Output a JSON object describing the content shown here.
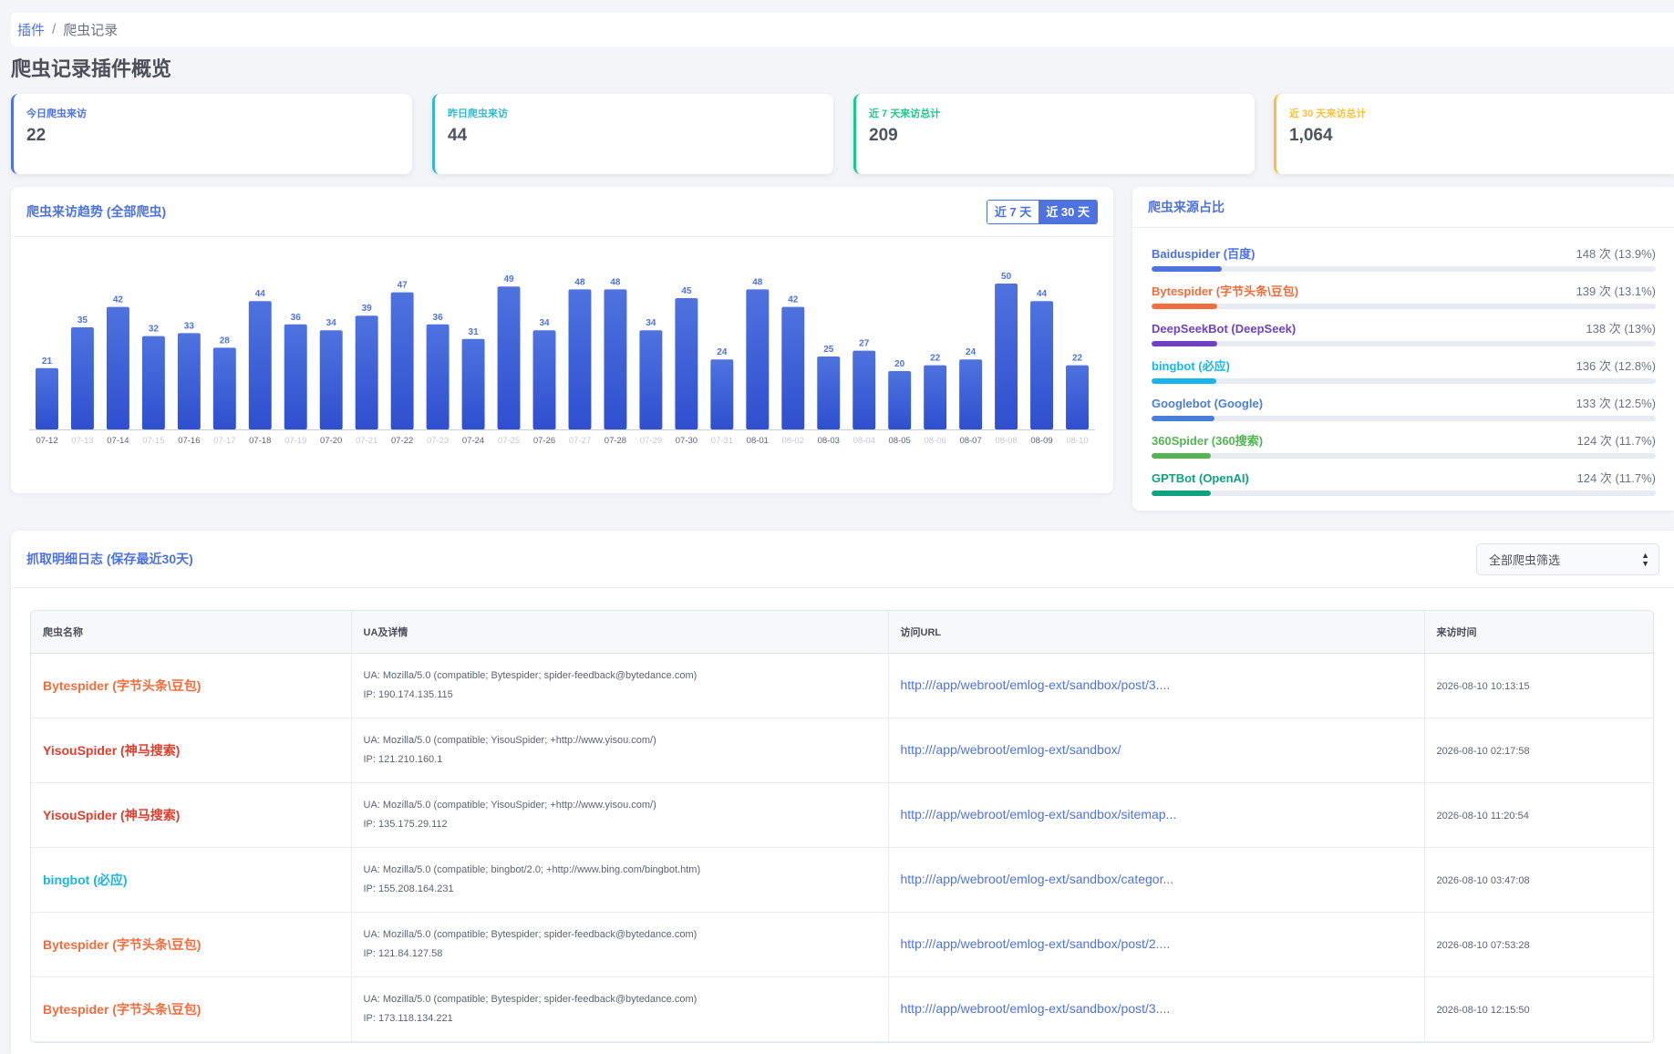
{
  "breadcrumb": {
    "parent": "插件",
    "separator": "/",
    "current": "爬虫记录"
  },
  "page_title": "爬虫记录插件概览",
  "stats": [
    {
      "label": "今日爬虫来访",
      "value": "22",
      "color": "#4e73df"
    },
    {
      "label": "昨日爬虫来访",
      "value": "44",
      "color": "#36b9cc"
    },
    {
      "label": "近 7 天来访总计",
      "value": "209",
      "color": "#1cc88a"
    },
    {
      "label": "近 30 天来访总计",
      "value": "1,064",
      "color": "#f6c23e"
    }
  ],
  "trend": {
    "title": "爬虫来访趋势 (全部爬虫)",
    "range_7": "近 7 天",
    "range_30": "近 30 天",
    "active_range": "近 30 天"
  },
  "chart_data": {
    "type": "bar",
    "categories": [
      "07-12",
      "07-13",
      "07-14",
      "07-15",
      "07-16",
      "07-17",
      "07-18",
      "07-19",
      "07-20",
      "07-21",
      "07-22",
      "07-23",
      "07-24",
      "07-25",
      "07-26",
      "07-27",
      "07-28",
      "07-29",
      "07-30",
      "07-31",
      "08-01",
      "08-02",
      "08-03",
      "08-04",
      "08-05",
      "08-06",
      "08-07",
      "08-08",
      "08-09",
      "08-10"
    ],
    "values": [
      21,
      35,
      42,
      32,
      33,
      28,
      44,
      36,
      34,
      39,
      47,
      36,
      31,
      49,
      34,
      48,
      48,
      34,
      45,
      24,
      48,
      42,
      25,
      27,
      20,
      22,
      24,
      50,
      44,
      22
    ],
    "title": "",
    "xlabel": "",
    "ylabel": "",
    "ylim": [
      0,
      50
    ],
    "grid": false,
    "bar_color": "#4e73df"
  },
  "sources": {
    "title": "爬虫来源占比",
    "items": [
      {
        "name": "Baiduspider (百度)",
        "count": "148 次 (13.9%)",
        "percent": 13.9,
        "color": "#4e73df"
      },
      {
        "name": "Bytespider (字节头条\\豆包)",
        "count": "139 次 (13.1%)",
        "percent": 13.1,
        "color": "#f26d3d"
      },
      {
        "name": "DeepSeekBot (DeepSeek)",
        "count": "138 次 (13%)",
        "percent": 13.0,
        "color": "#6f42c1"
      },
      {
        "name": "bingbot (必应)",
        "count": "136 次 (12.8%)",
        "percent": 12.8,
        "color": "#18b6e6"
      },
      {
        "name": "Googlebot (Google)",
        "count": "133 次 (12.5%)",
        "percent": 12.5,
        "color": "#4a7fd9"
      },
      {
        "name": "360Spider (360搜索)",
        "count": "124 次 (11.7%)",
        "percent": 11.7,
        "color": "#52b552"
      },
      {
        "name": "GPTBot (OpenAI)",
        "count": "124 次 (11.7%)",
        "percent": 11.7,
        "color": "#10a37f"
      }
    ]
  },
  "logs": {
    "title": "抓取明细日志 (保存最近30天)",
    "filter_value": "全部爬虫筛选",
    "columns": [
      "爬虫名称",
      "UA及详情",
      "访问URL",
      "来访时间"
    ],
    "rows": [
      {
        "bot": "Bytespider (字节头条\\豆包)",
        "color": "#f26d3d",
        "ua": "UA: Mozilla/5.0 (compatible; Bytespider; spider-feedback@bytedance.com)",
        "ip": "IP: 190.174.135.115",
        "url": "http:///app/webroot/emlog-ext/sandbox/post/3....",
        "time": "2026-08-10 10:13:15"
      },
      {
        "bot": "YisouSpider (神马搜索)",
        "color": "#e03e2d",
        "ua": "UA: Mozilla/5.0 (compatible; YisouSpider; +http://www.yisou.com/)",
        "ip": "IP: 121.210.160.1",
        "url": "http:///app/webroot/emlog-ext/sandbox/",
        "time": "2026-08-10 02:17:58"
      },
      {
        "bot": "YisouSpider (神马搜索)",
        "color": "#e03e2d",
        "ua": "UA: Mozilla/5.0 (compatible; YisouSpider; +http://www.yisou.com/)",
        "ip": "IP: 135.175.29.112",
        "url": "http:///app/webroot/emlog-ext/sandbox/sitemap...",
        "time": "2026-08-10 11:20:54"
      },
      {
        "bot": "bingbot (必应)",
        "color": "#18b6e6",
        "ua": "UA: Mozilla/5.0 (compatible; bingbot/2.0; +http://www.bing.com/bingbot.htm)",
        "ip": "IP: 155.208.164.231",
        "url": "http:///app/webroot/emlog-ext/sandbox/categor...",
        "time": "2026-08-10 03:47:08"
      },
      {
        "bot": "Bytespider (字节头条\\豆包)",
        "color": "#f26d3d",
        "ua": "UA: Mozilla/5.0 (compatible; Bytespider; spider-feedback@bytedance.com)",
        "ip": "IP: 121.84.127.58",
        "url": "http:///app/webroot/emlog-ext/sandbox/post/2....",
        "time": "2026-08-10 07:53:28"
      },
      {
        "bot": "Bytespider (字节头条\\豆包)",
        "color": "#f26d3d",
        "ua": "UA: Mozilla/5.0 (compatible; Bytespider; spider-feedback@bytedance.com)",
        "ip": "IP: 173.118.134.221",
        "url": "http:///app/webroot/emlog-ext/sandbox/post/3....",
        "time": "2026-08-10 12:15:50"
      }
    ]
  }
}
